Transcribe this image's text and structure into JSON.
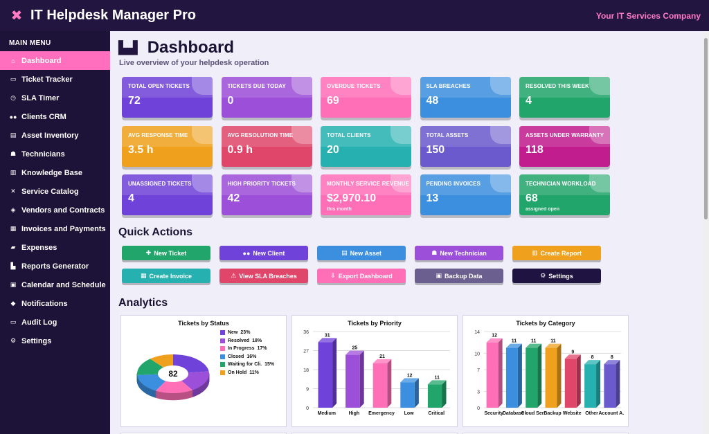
{
  "app": {
    "title": "IT Helpdesk Manager Pro",
    "company": "Your IT Services Company"
  },
  "sidebar": {
    "heading": "MAIN MENU",
    "items": [
      {
        "label": "Dashboard",
        "icon": "home-icon",
        "glyph": "⌂",
        "active": true
      },
      {
        "label": "Ticket Tracker",
        "icon": "ticket-icon",
        "glyph": "▭"
      },
      {
        "label": "SLA Timer",
        "icon": "timer-icon",
        "glyph": "◷"
      },
      {
        "label": "Clients CRM",
        "icon": "users-icon",
        "glyph": "●●"
      },
      {
        "label": "Asset Inventory",
        "icon": "server-icon",
        "glyph": "▤"
      },
      {
        "label": "Technicians",
        "icon": "technician-icon",
        "glyph": "☗"
      },
      {
        "label": "Knowledge Base",
        "icon": "book-icon",
        "glyph": "▥"
      },
      {
        "label": "Service Catalog",
        "icon": "tools-icon",
        "glyph": "✕"
      },
      {
        "label": "Vendors and Contracts",
        "icon": "handshake-icon",
        "glyph": "◈"
      },
      {
        "label": "Invoices and Payments",
        "icon": "invoice-icon",
        "glyph": "▦"
      },
      {
        "label": "Expenses",
        "icon": "money-icon",
        "glyph": "▰"
      },
      {
        "label": "Reports Generator",
        "icon": "chart-icon",
        "glyph": "▙"
      },
      {
        "label": "Calendar and Schedule",
        "icon": "calendar-icon",
        "glyph": "▣"
      },
      {
        "label": "Notifications",
        "icon": "bell-icon",
        "glyph": "◆"
      },
      {
        "label": "Audit Log",
        "icon": "log-icon",
        "glyph": "▭"
      },
      {
        "label": "Settings",
        "icon": "gear-icon",
        "glyph": "⚙"
      }
    ]
  },
  "page": {
    "title": "Dashboard",
    "subtitle": "Live overview of your helpdesk operation"
  },
  "stats": [
    {
      "label": "TOTAL OPEN TICKETS",
      "value": "72",
      "color": "#6f42d9"
    },
    {
      "label": "TICKETS DUE TODAY",
      "value": "0",
      "color": "#9c4fd8"
    },
    {
      "label": "OVERDUE TICKETS",
      "value": "69",
      "color": "#ff6fb8"
    },
    {
      "label": "SLA BREACHES",
      "value": "48",
      "color": "#3c8fdf"
    },
    {
      "label": "RESOLVED THIS WEEK",
      "value": "4",
      "color": "#22a56a"
    },
    {
      "label": "AVG RESPONSE TIME",
      "value": "3.5 h",
      "color": "#efa11d"
    },
    {
      "label": "AVG RESOLUTION TIME",
      "value": "0.9 h",
      "color": "#e0466a"
    },
    {
      "label": "TOTAL CLIENTS",
      "value": "20",
      "color": "#26b1b0"
    },
    {
      "label": "TOTAL ASSETS",
      "value": "150",
      "color": "#6a5acd"
    },
    {
      "label": "ASSETS UNDER WARRANTY",
      "value": "118",
      "color": "#c11d8f"
    },
    {
      "label": "UNASSIGNED TICKETS",
      "value": "4",
      "color": "#6f42d9"
    },
    {
      "label": "HIGH PRIORITY TICKETS",
      "value": "42",
      "color": "#9c4fd8"
    },
    {
      "label": "MONTHLY SERVICE REVENUE",
      "value": "$2,970.10",
      "sub": "this month",
      "color": "#ff6fb8"
    },
    {
      "label": "PENDING INVOICES",
      "value": "13",
      "color": "#3c8fdf"
    },
    {
      "label": "TECHNICIAN WORKLOAD",
      "value": "68",
      "sub": "assigned open",
      "color": "#22a56a"
    }
  ],
  "quick_actions": {
    "heading": "Quick Actions",
    "buttons": [
      {
        "label": "New Ticket",
        "glyph": "✚",
        "icon": "plus-icon",
        "color": "#22a56a"
      },
      {
        "label": "New Client",
        "glyph": "●●",
        "icon": "users-icon",
        "color": "#6f42d9"
      },
      {
        "label": "New Asset",
        "glyph": "▤",
        "icon": "server-icon",
        "color": "#3c8fdf"
      },
      {
        "label": "New Technician",
        "glyph": "☗",
        "icon": "technician-icon",
        "color": "#9c4fd8"
      },
      {
        "label": "Create Report",
        "glyph": "▥",
        "icon": "report-icon",
        "color": "#efa11d"
      },
      {
        "label": "Create Invoice",
        "glyph": "▦",
        "icon": "invoice-icon",
        "color": "#26b1b0"
      },
      {
        "label": "View SLA Breaches",
        "glyph": "⚠",
        "icon": "warning-icon",
        "color": "#e0466a"
      },
      {
        "label": "Export Dashboard",
        "glyph": "⇩",
        "icon": "export-icon",
        "color": "#ff6fb8"
      },
      {
        "label": "Backup Data",
        "glyph": "▣",
        "icon": "save-icon",
        "color": "#6b5f8f"
      },
      {
        "label": "Settings",
        "glyph": "⚙",
        "icon": "gear-icon",
        "color": "#1f1342"
      }
    ]
  },
  "analytics": {
    "heading": "Analytics"
  },
  "chart_data": [
    {
      "type": "pie",
      "title": "Tickets by Status",
      "center_label": "82",
      "slices": [
        {
          "label": "New",
          "percent_label": "23%",
          "value": 23,
          "color": "#6f42d9"
        },
        {
          "label": "Resolved",
          "percent_label": "18%",
          "value": 18,
          "color": "#9c4fd8"
        },
        {
          "label": "In Progress",
          "percent_label": "17%",
          "value": 17,
          "color": "#ff6fb8"
        },
        {
          "label": "Closed",
          "percent_label": "16%",
          "value": 16,
          "color": "#3c8fdf"
        },
        {
          "label": "Waiting for Cli.",
          "percent_label": "15%",
          "value": 15,
          "color": "#22a56a"
        },
        {
          "label": "On Hold",
          "percent_label": "11%",
          "value": 11,
          "color": "#efa11d"
        }
      ]
    },
    {
      "type": "bar",
      "title": "Tickets by Priority",
      "categories": [
        "Medium",
        "High",
        "Emergency",
        "Low",
        "Critical"
      ],
      "values": [
        31,
        25,
        21,
        12,
        11
      ],
      "colors": [
        "#6f42d9",
        "#9c4fd8",
        "#ff6fb8",
        "#3c8fdf",
        "#22a56a"
      ],
      "yticks": [
        0,
        9,
        18,
        27,
        36
      ],
      "ylim": [
        0,
        36
      ],
      "grid": true
    },
    {
      "type": "bar",
      "title": "Tickets by Category",
      "categories": [
        "Security",
        "Database",
        "Cloud Ser.",
        "Backup",
        "Website",
        "Other",
        "Account A."
      ],
      "values": [
        12,
        11,
        11,
        11,
        9,
        8,
        8
      ],
      "colors": [
        "#ff6fb8",
        "#3c8fdf",
        "#22a56a",
        "#efa11d",
        "#e0466a",
        "#26b1b0",
        "#6a5acd"
      ],
      "yticks": [
        0,
        3,
        7,
        10,
        14
      ],
      "ylim": [
        0,
        14
      ],
      "grid": true
    }
  ]
}
